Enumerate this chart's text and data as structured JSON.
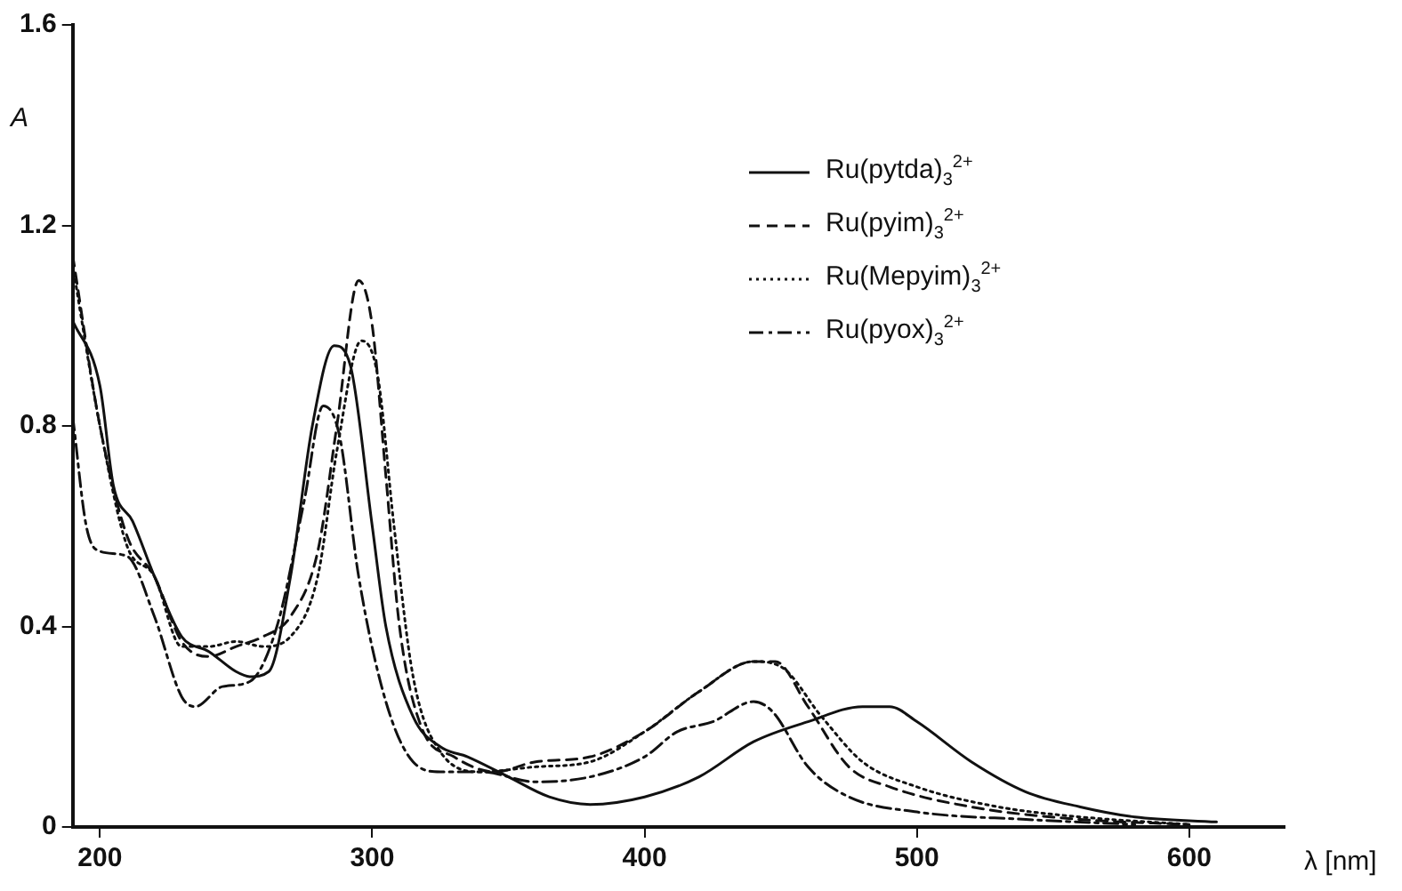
{
  "chart_data": {
    "type": "line",
    "xlabel": "λ [nm]",
    "ylabel": "A",
    "xlim": [
      190,
      635
    ],
    "ylim": [
      0,
      1.6
    ],
    "xticks": [
      200,
      300,
      400,
      500,
      600
    ],
    "yticks": [
      0,
      0.4,
      0.8,
      1.2,
      1.6
    ],
    "grid": false,
    "legend": "top right",
    "marker": "none",
    "series": [
      {
        "name": "Ru(pytda)$_{3}$$^{2+}$",
        "color": "#111111",
        "line_style": "solid",
        "x": [
          190,
          200,
          205,
          212,
          220,
          230,
          240,
          250,
          255,
          262,
          270,
          278,
          286,
          292,
          300,
          305,
          315,
          325,
          335,
          350,
          365,
          380,
          400,
          420,
          440,
          460,
          480,
          490,
          500,
          520,
          540,
          560,
          580,
          610
        ],
        "values": [
          1.01,
          0.88,
          0.68,
          0.61,
          0.5,
          0.38,
          0.35,
          0.31,
          0.3,
          0.31,
          0.5,
          0.8,
          0.96,
          0.92,
          0.6,
          0.4,
          0.22,
          0.16,
          0.14,
          0.1,
          0.06,
          0.045,
          0.06,
          0.1,
          0.17,
          0.21,
          0.24,
          0.24,
          0.21,
          0.13,
          0.07,
          0.04,
          0.02,
          0.01
        ]
      },
      {
        "name": "Ru(pyim)$_{3}$$^{2+}$",
        "color": "#111111",
        "line_style": "dashed",
        "x": [
          190,
          200,
          210,
          220,
          230,
          240,
          250,
          260,
          270,
          280,
          287,
          295,
          300,
          305,
          310,
          318,
          330,
          345,
          360,
          380,
          400,
          420,
          440,
          448,
          460,
          475,
          490,
          520,
          560,
          600
        ],
        "values": [
          1.14,
          0.8,
          0.58,
          0.5,
          0.37,
          0.34,
          0.36,
          0.38,
          0.42,
          0.55,
          0.8,
          1.09,
          1.0,
          0.7,
          0.4,
          0.2,
          0.14,
          0.11,
          0.13,
          0.14,
          0.19,
          0.27,
          0.33,
          0.33,
          0.24,
          0.12,
          0.08,
          0.04,
          0.015,
          0.005
        ]
      },
      {
        "name": "Ru(Mepyim)$_{3}$$^{2+}$",
        "color": "#111111",
        "line_style": "dotted",
        "x": [
          190,
          200,
          210,
          220,
          230,
          240,
          250,
          260,
          270,
          280,
          287,
          296,
          302,
          308,
          315,
          325,
          340,
          360,
          380,
          400,
          420,
          440,
          450,
          465,
          480,
          500,
          530,
          560,
          600
        ],
        "values": [
          1.12,
          0.8,
          0.56,
          0.5,
          0.36,
          0.36,
          0.37,
          0.36,
          0.38,
          0.5,
          0.75,
          0.97,
          0.9,
          0.6,
          0.3,
          0.15,
          0.11,
          0.12,
          0.13,
          0.19,
          0.27,
          0.33,
          0.32,
          0.22,
          0.13,
          0.08,
          0.04,
          0.02,
          0.005
        ]
      },
      {
        "name": "Ru(pyox)$_{3}$$^{2+}$",
        "color": "#111111",
        "line_style": "dashdot",
        "x": [
          190,
          195,
          200,
          210,
          220,
          230,
          235,
          245,
          255,
          265,
          275,
          282,
          288,
          295,
          305,
          315,
          325,
          340,
          360,
          380,
          400,
          412,
          425,
          440,
          447,
          460,
          475,
          500,
          540,
          580
        ],
        "values": [
          0.82,
          0.6,
          0.55,
          0.54,
          0.42,
          0.26,
          0.24,
          0.28,
          0.29,
          0.4,
          0.65,
          0.84,
          0.78,
          0.5,
          0.25,
          0.13,
          0.11,
          0.11,
          0.09,
          0.1,
          0.14,
          0.19,
          0.21,
          0.25,
          0.23,
          0.12,
          0.06,
          0.03,
          0.015,
          0.005
        ]
      }
    ]
  }
}
